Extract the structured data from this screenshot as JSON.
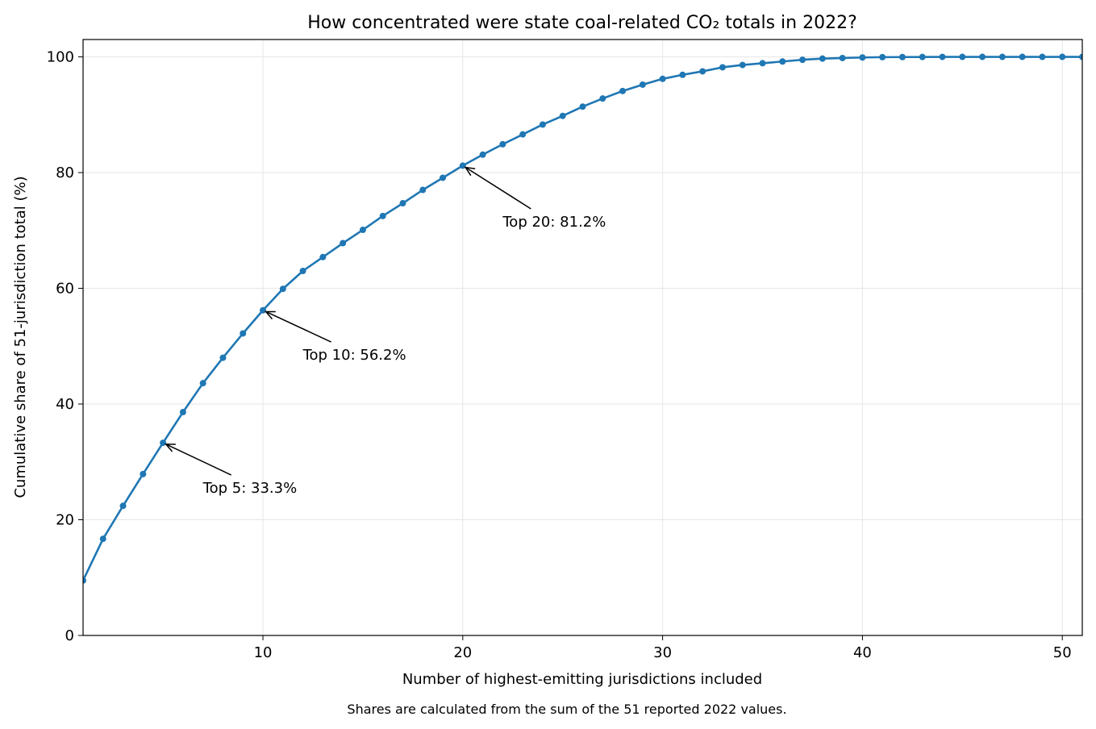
{
  "chart_data": {
    "type": "line",
    "title": "How concentrated were state coal-related CO₂ totals in 2022?",
    "xlabel": "Number of highest-emitting jurisdictions included",
    "ylabel": "Cumulative share of 51-jurisdiction total (%)",
    "footnote": "Shares are calculated from the sum of the 51 reported 2022 values.",
    "xlim": [
      1,
      51
    ],
    "ylim": [
      0,
      103
    ],
    "xticks": [
      10,
      20,
      30,
      40,
      50
    ],
    "yticks": [
      0,
      20,
      40,
      60,
      80,
      100
    ],
    "grid": true,
    "line_color": "#1f77b4",
    "series": [
      {
        "x": [
          1,
          2,
          3,
          4,
          5,
          6,
          7,
          8,
          9,
          10,
          11,
          12,
          13,
          14,
          15,
          16,
          17,
          18,
          19,
          20,
          21,
          22,
          23,
          24,
          25,
          26,
          27,
          28,
          29,
          30,
          31,
          32,
          33,
          34,
          35,
          36,
          37,
          38,
          39,
          40,
          41,
          42,
          43,
          44,
          45,
          46,
          47,
          48,
          49,
          50,
          51
        ],
        "values": [
          9.5,
          16.7,
          22.4,
          27.9,
          33.3,
          38.6,
          43.6,
          48.0,
          52.2,
          56.2,
          59.9,
          63.0,
          65.4,
          67.8,
          70.1,
          72.5,
          74.7,
          77.0,
          79.1,
          81.2,
          83.1,
          84.9,
          86.6,
          88.3,
          89.8,
          91.4,
          92.8,
          94.1,
          95.2,
          96.2,
          96.9,
          97.5,
          98.2,
          98.6,
          98.9,
          99.2,
          99.5,
          99.7,
          99.8,
          99.9,
          99.95,
          99.97,
          99.98,
          99.99,
          100,
          100,
          100,
          100,
          100,
          100,
          100
        ]
      }
    ],
    "annotations": [
      {
        "text": "Top 5: 33.3%",
        "x": 5,
        "y": 33.3,
        "text_x": 7,
        "text_y": 25.5
      },
      {
        "text": "Top 10: 56.2%",
        "x": 10,
        "y": 56.2,
        "text_x": 12,
        "text_y": 48.5
      },
      {
        "text": "Top 20: 81.2%",
        "x": 20,
        "y": 81.2,
        "text_x": 22,
        "text_y": 71.5
      }
    ]
  }
}
